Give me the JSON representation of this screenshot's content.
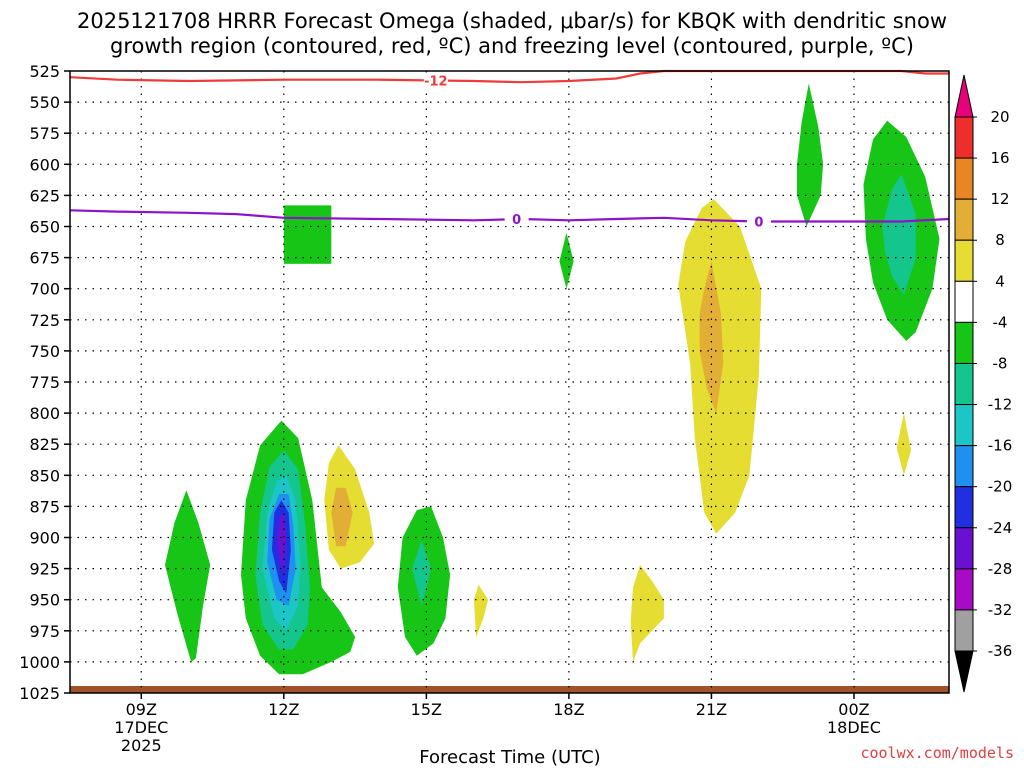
{
  "chart_data": {
    "type": "time-height contour",
    "title_line1": "2025121708 HRRR Forecast Omega (shaded, μbar/s) for KBQK with dendritic snow",
    "title_line2": "growth region (contoured, red, ºC) and freezing level (contoured, purple, ºC)",
    "xlabel": "Forecast Time (UTC)",
    "credit": "coolwx.com/models",
    "xlim": [
      7.5,
      26
    ],
    "ylim": [
      525,
      1025
    ],
    "y_ticks": [
      525,
      550,
      575,
      600,
      625,
      650,
      675,
      700,
      725,
      750,
      775,
      800,
      825,
      850,
      875,
      900,
      925,
      950,
      975,
      1000,
      1025
    ],
    "x_ticks": [
      {
        "hour": 9,
        "lines": [
          "09Z",
          "17DEC",
          "2025"
        ]
      },
      {
        "hour": 12,
        "lines": [
          "12Z"
        ]
      },
      {
        "hour": 15,
        "lines": [
          "15Z"
        ]
      },
      {
        "hour": 18,
        "lines": [
          "18Z"
        ]
      },
      {
        "hour": 21,
        "lines": [
          "21Z"
        ]
      },
      {
        "hour": 24,
        "lines": [
          "00Z",
          "18DEC"
        ]
      }
    ],
    "colorbar": {
      "levels": [
        20,
        16,
        12,
        8,
        4,
        -4,
        -8,
        -12,
        -16,
        -20,
        -24,
        -28,
        -32,
        -36
      ],
      "colors": [
        "#e8007a",
        "#ee2d2d",
        "#e98522",
        "#e2ae35",
        "#e6dd33",
        "#ffffff",
        "#16c516",
        "#14c68e",
        "#1cc6c6",
        "#1e90f0",
        "#2030e0",
        "#6a10d0",
        "#a80ac8",
        "#a0a0a0",
        "#000000"
      ]
    },
    "dendritic_isotherm": {
      "label": "-12",
      "color": "#ee3b3b",
      "points": [
        [
          7.5,
          530
        ],
        [
          8.5,
          532
        ],
        [
          10,
          533
        ],
        [
          12,
          532
        ],
        [
          14,
          532
        ],
        [
          16,
          533
        ],
        [
          17,
          534
        ],
        [
          18,
          533
        ],
        [
          19,
          531
        ],
        [
          19.5,
          527
        ],
        [
          20,
          525
        ],
        [
          21,
          525
        ],
        [
          23,
          525
        ],
        [
          25,
          525
        ],
        [
          25.5,
          527
        ],
        [
          26,
          527
        ]
      ]
    },
    "freezing_level": {
      "label": "0",
      "color": "#9012c8",
      "points": [
        [
          7.5,
          637
        ],
        [
          8.5,
          638
        ],
        [
          10,
          639
        ],
        [
          11,
          640
        ],
        [
          12,
          643
        ],
        [
          14,
          644
        ],
        [
          16,
          645
        ],
        [
          17,
          644
        ],
        [
          18,
          645
        ],
        [
          19,
          644
        ],
        [
          20,
          643
        ],
        [
          21,
          645
        ],
        [
          22,
          646
        ],
        [
          23,
          646
        ],
        [
          24,
          646
        ],
        [
          25,
          646
        ],
        [
          26,
          644
        ]
      ]
    },
    "omega_regions": [
      {
        "level": -4,
        "kind": "shape",
        "points": [
          [
            9.5,
            922
          ],
          [
            9.7,
            888
          ],
          [
            9.95,
            862
          ],
          [
            10.2,
            888
          ],
          [
            10.45,
            922
          ],
          [
            10.3,
            955
          ],
          [
            10.15,
            997
          ],
          [
            10.05,
            1000
          ],
          [
            9.9,
            980
          ],
          [
            9.75,
            960
          ]
        ]
      },
      {
        "level": -4,
        "kind": "rect",
        "points": [
          [
            12,
            633
          ],
          [
            13,
            680
          ]
        ]
      },
      {
        "level": -4,
        "kind": "shape",
        "points": [
          [
            17.8,
            678
          ],
          [
            17.95,
            655
          ],
          [
            18.1,
            678
          ],
          [
            17.95,
            700
          ]
        ]
      },
      {
        "level": -4,
        "kind": "shape",
        "points": [
          [
            11.1,
            930
          ],
          [
            11.2,
            870
          ],
          [
            11.5,
            826
          ],
          [
            11.95,
            806
          ],
          [
            12.3,
            820
          ],
          [
            12.6,
            870
          ],
          [
            12.8,
            940
          ],
          [
            13.2,
            960
          ],
          [
            13.5,
            980
          ],
          [
            13.4,
            992
          ],
          [
            13.0,
            1000
          ],
          [
            12.4,
            1010
          ],
          [
            11.9,
            1010
          ],
          [
            11.5,
            995
          ],
          [
            11.2,
            965
          ]
        ]
      },
      {
        "level": -8,
        "kind": "shape",
        "points": [
          [
            11.4,
            930
          ],
          [
            11.5,
            880
          ],
          [
            11.7,
            843
          ],
          [
            12.0,
            830
          ],
          [
            12.3,
            845
          ],
          [
            12.45,
            890
          ],
          [
            12.55,
            940
          ],
          [
            12.5,
            970
          ],
          [
            12.2,
            990
          ],
          [
            11.9,
            990
          ],
          [
            11.55,
            970
          ]
        ]
      },
      {
        "level": -12,
        "kind": "shape",
        "points": [
          [
            11.55,
            925
          ],
          [
            11.65,
            880
          ],
          [
            11.85,
            855
          ],
          [
            12.05,
            850
          ],
          [
            12.25,
            870
          ],
          [
            12.35,
            920
          ],
          [
            12.3,
            955
          ],
          [
            12.05,
            975
          ],
          [
            11.8,
            965
          ]
        ]
      },
      {
        "level": -16,
        "kind": "shape",
        "points": [
          [
            11.65,
            920
          ],
          [
            11.7,
            885
          ],
          [
            11.9,
            865
          ],
          [
            12.1,
            865
          ],
          [
            12.2,
            890
          ],
          [
            12.25,
            925
          ],
          [
            12.1,
            955
          ],
          [
            11.85,
            950
          ]
        ]
      },
      {
        "level": -20,
        "kind": "shape",
        "points": [
          [
            11.75,
            910
          ],
          [
            11.8,
            880
          ],
          [
            11.95,
            870
          ],
          [
            12.1,
            880
          ],
          [
            12.15,
            910
          ],
          [
            12.05,
            945
          ],
          [
            11.9,
            935
          ]
        ]
      },
      {
        "level": -24,
        "kind": "shape",
        "points": [
          [
            11.85,
            905
          ],
          [
            11.9,
            885
          ],
          [
            12.0,
            880
          ],
          [
            12.05,
            900
          ],
          [
            12.0,
            930
          ],
          [
            11.92,
            920
          ]
        ]
      },
      {
        "level": -4,
        "kind": "shape",
        "points": [
          [
            14.4,
            940
          ],
          [
            14.5,
            900
          ],
          [
            14.8,
            878
          ],
          [
            15.1,
            875
          ],
          [
            15.35,
            900
          ],
          [
            15.5,
            930
          ],
          [
            15.4,
            965
          ],
          [
            15.15,
            985
          ],
          [
            14.8,
            995
          ],
          [
            14.55,
            980
          ]
        ]
      },
      {
        "level": -8,
        "kind": "shape",
        "points": [
          [
            14.7,
            925
          ],
          [
            14.9,
            902
          ],
          [
            15.1,
            925
          ],
          [
            14.9,
            955
          ]
        ]
      },
      {
        "level": -4,
        "kind": "shape",
        "points": [
          [
            22.8,
            600
          ],
          [
            22.9,
            566
          ],
          [
            23.05,
            535
          ],
          [
            23.25,
            570
          ],
          [
            23.35,
            600
          ],
          [
            23.3,
            625
          ],
          [
            23.0,
            650
          ],
          [
            22.8,
            625
          ]
        ]
      },
      {
        "level": -4,
        "kind": "shape",
        "points": [
          [
            24.2,
            616
          ],
          [
            24.4,
            580
          ],
          [
            24.7,
            565
          ],
          [
            25.1,
            578
          ],
          [
            25.5,
            610
          ],
          [
            25.8,
            660
          ],
          [
            25.65,
            700
          ],
          [
            25.3,
            735
          ],
          [
            25.1,
            742
          ],
          [
            24.7,
            725
          ],
          [
            24.4,
            695
          ],
          [
            24.25,
            660
          ]
        ]
      },
      {
        "level": -8,
        "kind": "shape",
        "points": [
          [
            24.6,
            650
          ],
          [
            24.8,
            620
          ],
          [
            25.0,
            608
          ],
          [
            25.3,
            640
          ],
          [
            25.3,
            675
          ],
          [
            25.05,
            705
          ],
          [
            24.8,
            690
          ],
          [
            24.65,
            670
          ]
        ]
      },
      {
        "level": 4,
        "kind": "shape",
        "points": [
          [
            12.85,
            870
          ],
          [
            12.95,
            840
          ],
          [
            13.15,
            826
          ],
          [
            13.5,
            845
          ],
          [
            13.8,
            880
          ],
          [
            13.9,
            905
          ],
          [
            13.6,
            920
          ],
          [
            13.2,
            925
          ],
          [
            12.95,
            910
          ]
        ]
      },
      {
        "level": 8,
        "kind": "shape",
        "points": [
          [
            13.0,
            880
          ],
          [
            13.1,
            860
          ],
          [
            13.3,
            860
          ],
          [
            13.45,
            880
          ],
          [
            13.3,
            907
          ],
          [
            13.1,
            907
          ]
        ]
      },
      {
        "level": 4,
        "kind": "shape",
        "points": [
          [
            16.0,
            950
          ],
          [
            16.1,
            938
          ],
          [
            16.3,
            950
          ],
          [
            16.2,
            965
          ],
          [
            16.05,
            980
          ]
        ]
      },
      {
        "level": 4,
        "kind": "shape",
        "points": [
          [
            19.3,
            967
          ],
          [
            19.35,
            940
          ],
          [
            19.5,
            922
          ],
          [
            19.75,
            935
          ],
          [
            20.0,
            950
          ],
          [
            20.0,
            965
          ],
          [
            19.75,
            975
          ],
          [
            19.5,
            985
          ],
          [
            19.35,
            1000
          ]
        ]
      },
      {
        "level": 4,
        "kind": "shape",
        "points": [
          [
            20.3,
            697
          ],
          [
            20.45,
            662
          ],
          [
            20.8,
            635
          ],
          [
            21.05,
            628
          ],
          [
            21.6,
            650
          ],
          [
            22.05,
            700
          ],
          [
            22.0,
            770
          ],
          [
            21.8,
            850
          ],
          [
            21.5,
            880
          ],
          [
            21.1,
            897
          ],
          [
            20.85,
            880
          ],
          [
            20.65,
            820
          ],
          [
            20.55,
            760
          ]
        ]
      },
      {
        "level": 8,
        "kind": "shape",
        "points": [
          [
            20.75,
            720
          ],
          [
            20.85,
            700
          ],
          [
            21.0,
            678
          ],
          [
            21.2,
            720
          ],
          [
            21.25,
            760
          ],
          [
            21.1,
            800
          ],
          [
            20.9,
            780
          ],
          [
            20.75,
            750
          ]
        ]
      },
      {
        "level": 4,
        "kind": "shape",
        "points": [
          [
            24.9,
            828
          ],
          [
            25.05,
            800
          ],
          [
            25.2,
            830
          ],
          [
            25.05,
            850
          ]
        ]
      }
    ]
  }
}
